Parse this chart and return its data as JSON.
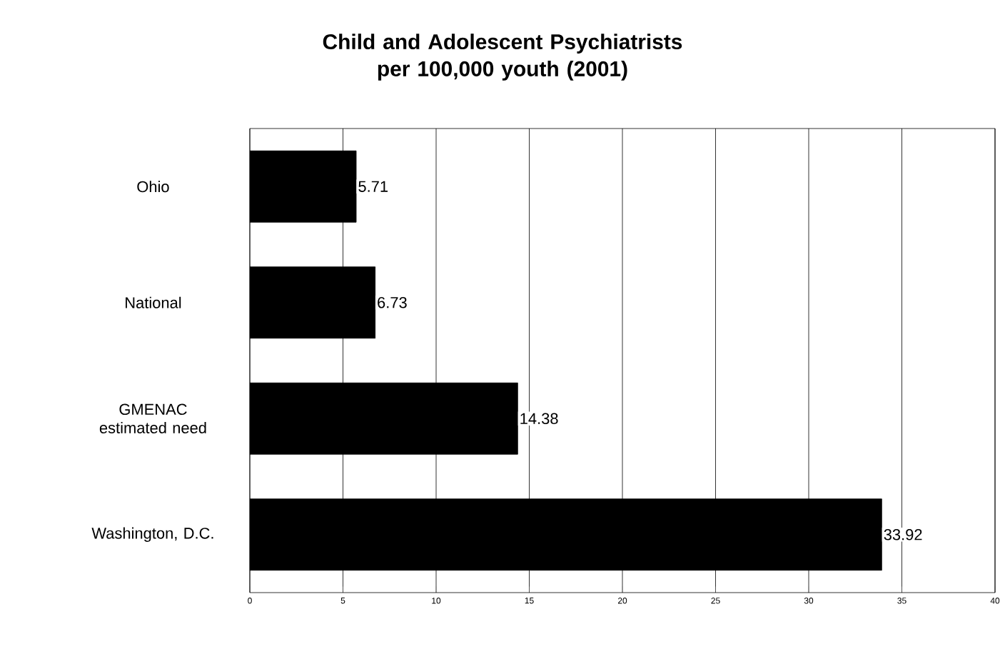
{
  "chart_data": {
    "type": "bar",
    "orientation": "horizontal",
    "title": "Child and Adolescent Psychiatrists per 100,000 youth (2001)",
    "categories": [
      "Ohio",
      "National",
      "GMENAC estimated need",
      "Washington, D.C."
    ],
    "values": [
      5.71,
      6.73,
      14.38,
      33.92
    ],
    "color": "#000000",
    "xlim": [
      0,
      40
    ],
    "xticks": [
      0,
      5,
      10,
      15,
      20,
      25,
      30,
      35,
      40
    ],
    "grid": "x",
    "data_labels": true
  }
}
